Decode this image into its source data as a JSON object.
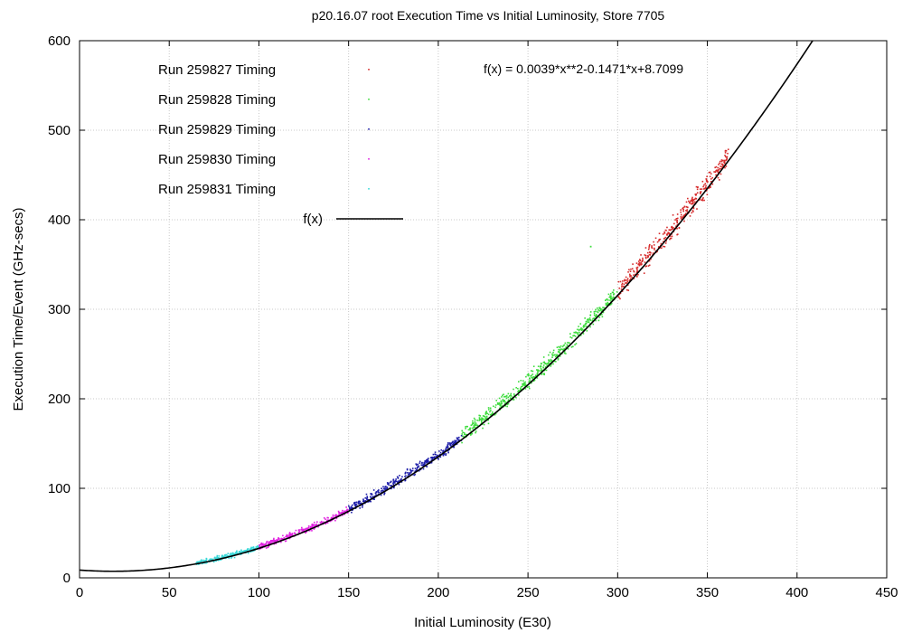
{
  "chart_data": {
    "type": "scatter",
    "title": "p20.16.07 root Execution Time vs Initial Luminosity, Store 7705",
    "xlabel": "Initial Luminosity (E30)",
    "ylabel": "Execution Time/Event (GHz-secs)",
    "xlim": [
      0,
      450
    ],
    "ylim": [
      0,
      600
    ],
    "xticks": [
      "0",
      "50",
      "100",
      "150",
      "200",
      "250",
      "300",
      "350",
      "400",
      "450"
    ],
    "yticks": [
      "0",
      "100",
      "200",
      "300",
      "400",
      "500",
      "600"
    ],
    "grid": true,
    "legend_position": "top-left",
    "series": [
      {
        "name": "Run 259827  Timing",
        "color": "#d62a2a",
        "x_range": [
          300,
          362
        ],
        "spread": 8
      },
      {
        "name": "Run 259828  Timing",
        "color": "#3ddc3d",
        "x_range": [
          213,
          300
        ],
        "spread": 6
      },
      {
        "name": "Run 259829  Timing",
        "color": "#1c1ca8",
        "x_range": [
          150,
          213
        ],
        "spread": 4
      },
      {
        "name": "Run 259830  Timing",
        "color": "#e020e0",
        "x_range": [
          100,
          150
        ],
        "spread": 2.5
      },
      {
        "name": "Run 259831  Timing",
        "color": "#38d8d8",
        "x_range": [
          65,
          100
        ],
        "spread": 2
      }
    ],
    "fit": {
      "name": "f(x)",
      "label": "f(x) = 0.0039*x**2-0.1471*x+8.7099",
      "a": 0.0039,
      "b": -0.1471,
      "c": 8.7099,
      "color": "#000000"
    },
    "outliers": [
      {
        "x": 285,
        "y": 370,
        "color": "#3ddc3d"
      }
    ]
  }
}
